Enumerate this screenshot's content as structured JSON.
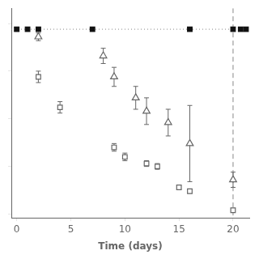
{
  "chart_data": {
    "type": "scatter",
    "xlabel": "Time (days)",
    "xlim": [
      -0.5,
      21.5
    ],
    "ylim": [
      -0.02,
      1.08
    ],
    "xticks": [
      0,
      5,
      10,
      15,
      20
    ],
    "yticks": [
      0,
      0.25,
      0.5,
      0.75,
      1.0
    ],
    "tick_labels": "x",
    "grid": false,
    "reference_lines": [
      {
        "axis": "y",
        "value": 0.97,
        "color": "#888888",
        "line_style": "dotted"
      },
      {
        "axis": "x",
        "value": 20,
        "color": "#888888",
        "line_style": "dashed"
      }
    ],
    "series": [
      {
        "color": "#111111",
        "marker": "square",
        "x": [
          0,
          1,
          2,
          7,
          16,
          20,
          20.7,
          21.2
        ],
        "values": [
          0.97,
          0.97,
          0.97,
          0.97,
          0.97,
          0.97,
          0.97,
          0.97
        ],
        "yerr": [
          0.01,
          0.01,
          0.01,
          0.01,
          0.01,
          0.01,
          0.01,
          0.01
        ]
      },
      {
        "color": "#666666",
        "marker": "open_square",
        "x": [
          2,
          4,
          9,
          10,
          12,
          13,
          15,
          16,
          20
        ],
        "values": [
          0.72,
          0.56,
          0.35,
          0.3,
          0.265,
          0.25,
          0.14,
          0.12,
          0.02
        ],
        "yerr": [
          0.03,
          0.03,
          0.02,
          0.02,
          0.015,
          0.015,
          0.01,
          0.01,
          0.01
        ]
      },
      {
        "color": "#666666",
        "marker": "open_triangle",
        "x": [
          2,
          8,
          9,
          11,
          12,
          14,
          16,
          20
        ],
        "values": [
          0.93,
          0.83,
          0.72,
          0.61,
          0.54,
          0.48,
          0.37,
          0.18
        ],
        "yerr": [
          0.02,
          0.04,
          0.05,
          0.06,
          0.07,
          0.07,
          0.2,
          0.04
        ]
      }
    ]
  }
}
